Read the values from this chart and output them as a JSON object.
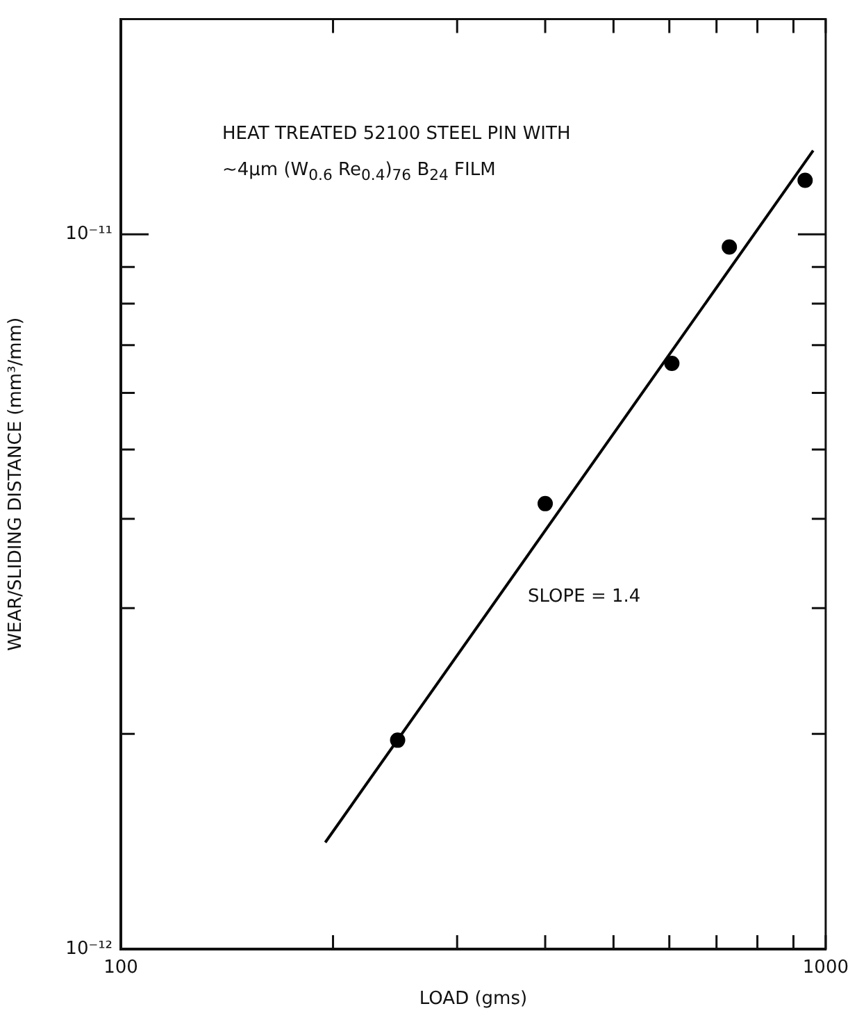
{
  "chart_data": {
    "type": "scatter",
    "xlabel": "LOAD (gms)",
    "ylabel": "WEAR/SLIDING DISTANCE (mm³/mm)",
    "log": "xy",
    "grid": false,
    "legend": false,
    "marker": "circle",
    "xlim": [
      100,
      1000
    ],
    "xticks": [
      100,
      {
        "value": 200,
        "label": null
      },
      {
        "value": 300,
        "label": null
      },
      {
        "value": 400,
        "label": null
      },
      {
        "value": 500,
        "label": null
      },
      {
        "value": 600,
        "label": null
      },
      {
        "value": 700,
        "label": null
      },
      {
        "value": 800,
        "label": null
      },
      {
        "value": 900,
        "label": null
      },
      1000
    ],
    "ylim": [
      1e-12,
      2e-11
    ],
    "yticks": [
      {
        "value": 1e-12,
        "label": "10⁻¹²"
      },
      {
        "value": 2e-12,
        "label": null
      },
      {
        "value": 3e-12,
        "label": null
      },
      {
        "value": 4e-12,
        "label": null
      },
      {
        "value": 5e-12,
        "label": null
      },
      {
        "value": 6e-12,
        "label": null
      },
      {
        "value": 7e-12,
        "label": null
      },
      {
        "value": 8e-12,
        "label": null
      },
      {
        "value": 9e-12,
        "label": null
      },
      {
        "value": 1e-11,
        "label": "10⁻¹¹"
      }
    ],
    "series": [
      {
        "color": "#000000",
        "x": [
          247,
          400,
          605,
          730,
          935
        ],
        "values": [
          1.96e-12,
          4.2e-12,
          6.6e-12,
          9.6e-12,
          1.19e-11
        ]
      },
      {
        "type": "line",
        "marker": "none",
        "color": "#000000",
        "x": [
          195,
          960
        ],
        "values": [
          1.41e-12,
          1.31e-11
        ]
      }
    ],
    "annotations": [
      "HEAT TREATED 52100 STEEL PIN WITH",
      "~4μm (W$_{0.6}$ Re$_{0.4}$)$_{76}$ B$_{24}$ FILM",
      "SLOPE = 1.4"
    ]
  }
}
